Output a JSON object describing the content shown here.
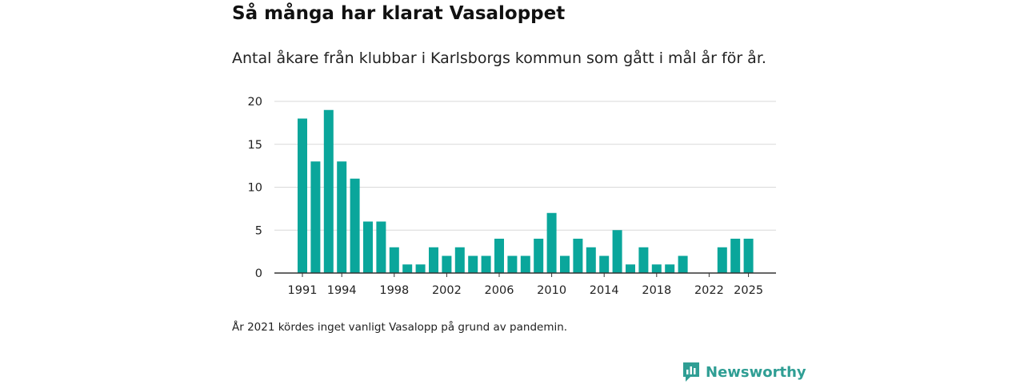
{
  "title": "Så många har klarat Vasaloppet",
  "subtitle": "Antal åkare från klubbar i Karlsborgs kommun som gått i mål år för år.",
  "footnote": "År 2021 kördes inget vanligt Vasalopp på grund av pandemin.",
  "brand": {
    "name": "Newsworthy",
    "icon": "newsworthy-logo-icon"
  },
  "colors": {
    "bar": "#0aa69b",
    "grid": "#d9d9d9",
    "axis": "#333333",
    "brand": "#2f9e94"
  },
  "chart_data": {
    "type": "bar",
    "title": "Så många har klarat Vasaloppet",
    "xlabel": "",
    "ylabel": "",
    "categories": [
      1991,
      1992,
      1993,
      1994,
      1995,
      1996,
      1997,
      1998,
      1999,
      2000,
      2001,
      2002,
      2003,
      2004,
      2005,
      2006,
      2007,
      2008,
      2009,
      2010,
      2011,
      2012,
      2013,
      2014,
      2015,
      2016,
      2017,
      2018,
      2019,
      2020,
      2021,
      2022,
      2023,
      2024,
      2025
    ],
    "values": [
      18,
      13,
      19,
      13,
      11,
      6,
      6,
      3,
      1,
      1,
      3,
      2,
      3,
      2,
      2,
      4,
      2,
      2,
      4,
      7,
      2,
      4,
      3,
      2,
      5,
      1,
      3,
      1,
      1,
      2,
      0,
      0,
      3,
      4,
      4
    ],
    "ylim": [
      0,
      20
    ],
    "yticks": [
      0,
      5,
      10,
      15,
      20
    ],
    "xticks": [
      "1991",
      "1994",
      "1998",
      "2002",
      "2006",
      "2010",
      "2014",
      "2018",
      "2022",
      "2025"
    ],
    "grid": true,
    "legend": "none"
  }
}
